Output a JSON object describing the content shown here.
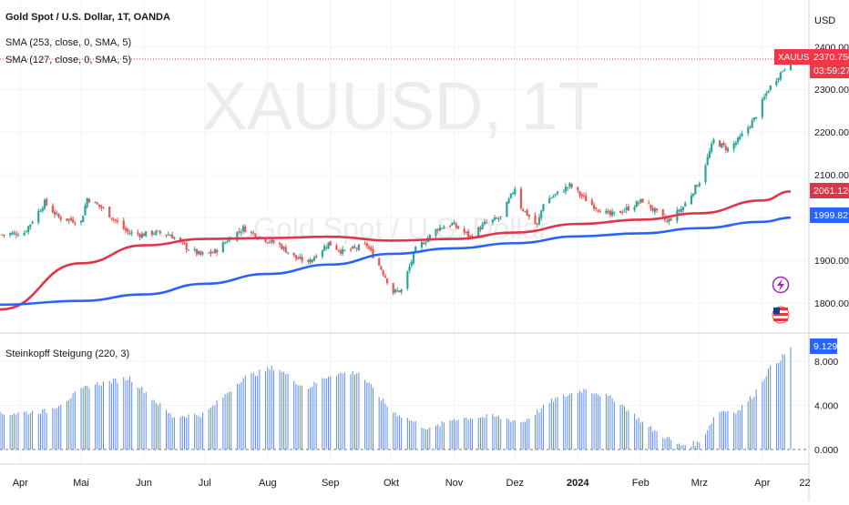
{
  "header": {
    "title": "Gold Spot / U.S. Dollar, 1T, OANDA",
    "currency": "USD"
  },
  "watermark": {
    "symbol": "XAUUSD, 1T",
    "name": "Gold Spot / U.S. Dollar"
  },
  "legend": {
    "sma_253": "SMA (253, close, 0, SMA, 5)",
    "sma_127": "SMA (127, close, 0, SMA, 5)",
    "indicator": "Steinkopff Steigung (220, 3)"
  },
  "price_axis": {
    "ticks": [
      "2400.000",
      "2300.000",
      "2200.000",
      "2100.000",
      "1900.000",
      "1800.000"
    ],
    "hidden_tick": "2000.000"
  },
  "indicator_axis": {
    "ticks": [
      "8.000",
      "4.000",
      "0.000"
    ]
  },
  "badges": {
    "symbol": "XAUUSD",
    "last_price": "2370.750",
    "countdown": "03:59:27",
    "sma_253_value": "2061.126",
    "sma_127_value": "1999.827",
    "indicator_value": "9.129"
  },
  "time_axis": {
    "labels": [
      "Apr",
      "Mai",
      "Jun",
      "Jul",
      "Aug",
      "Sep",
      "Okt",
      "Nov",
      "Dez",
      "2024",
      "Feb",
      "Mrz",
      "Apr",
      "22"
    ]
  },
  "colors": {
    "up": "#26a69a",
    "down": "#ef5350",
    "sma_253": "#e0344b",
    "sma_127": "#2962ff",
    "indicator_bars": "#5b8def",
    "last_price_badge": "#f23645",
    "indicator_badge": "#2962ff"
  },
  "icons": {
    "event_flash": "flash-icon",
    "event_country": "us-flag-icon"
  },
  "chart_data": [
    {
      "type": "candlestick",
      "title": "Gold Spot / U.S. Dollar, 1T, OANDA",
      "ylim": [
        1770,
        2430
      ],
      "x_range": [
        "2023-03-22",
        "2024-04-24"
      ],
      "x_labels": [
        "Apr",
        "Mai",
        "Jun",
        "Jul",
        "Aug",
        "Sep",
        "Okt",
        "Nov",
        "Dez",
        "2024",
        "Feb",
        "Mrz",
        "Apr",
        "22"
      ],
      "close_path": [
        [
          "2023-03-23",
          1960
        ],
        [
          "2023-04-03",
          1965
        ],
        [
          "2023-04-13",
          2035
        ],
        [
          "2023-04-20",
          2000
        ],
        [
          "2023-05-01",
          1990
        ],
        [
          "2023-05-04",
          2045
        ],
        [
          "2023-05-12",
          2020
        ],
        [
          "2023-05-24",
          1965
        ],
        [
          "2023-05-31",
          1960
        ],
        [
          "2023-06-06",
          1965
        ],
        [
          "2023-06-14",
          1960
        ],
        [
          "2023-06-22",
          1930
        ],
        [
          "2023-06-29",
          1912
        ],
        [
          "2023-07-06",
          1920
        ],
        [
          "2023-07-14",
          1955
        ],
        [
          "2023-07-20",
          1975
        ],
        [
          "2023-07-28",
          1955
        ],
        [
          "2023-08-07",
          1935
        ],
        [
          "2023-08-15",
          1905
        ],
        [
          "2023-08-21",
          1895
        ],
        [
          "2023-08-31",
          1940
        ],
        [
          "2023-09-07",
          1920
        ],
        [
          "2023-09-19",
          1935
        ],
        [
          "2023-09-26",
          1880
        ],
        [
          "2023-10-02",
          1825
        ],
        [
          "2023-10-06",
          1830
        ],
        [
          "2023-10-13",
          1925
        ],
        [
          "2023-10-24",
          1975
        ],
        [
          "2023-10-31",
          1985
        ],
        [
          "2023-11-09",
          1955
        ],
        [
          "2023-11-16",
          1985
        ],
        [
          "2023-11-24",
          2000
        ],
        [
          "2023-12-01",
          2070
        ],
        [
          "2023-12-04",
          2025
        ],
        [
          "2023-12-12",
          1980
        ],
        [
          "2023-12-15",
          2035
        ],
        [
          "2023-12-28",
          2075
        ],
        [
          "2024-01-08",
          2030
        ],
        [
          "2024-01-17",
          2005
        ],
        [
          "2024-01-25",
          2020
        ],
        [
          "2024-02-02",
          2040
        ],
        [
          "2024-02-14",
          1990
        ],
        [
          "2024-02-22",
          2025
        ],
        [
          "2024-03-01",
          2085
        ],
        [
          "2024-03-08",
          2180
        ],
        [
          "2024-03-15",
          2160
        ],
        [
          "2024-03-20",
          2180
        ],
        [
          "2024-03-28",
          2230
        ],
        [
          "2024-04-04",
          2300
        ],
        [
          "2024-04-11",
          2345
        ],
        [
          "2024-04-15",
          2370
        ]
      ],
      "series": [
        {
          "name": "SMA (253, close, 0, SMA, 5)",
          "x": [
            "2023-03-22",
            "2023-05-01",
            "2023-06-01",
            "2023-07-01",
            "2023-08-01",
            "2023-09-01",
            "2023-10-01",
            "2023-11-01",
            "2023-12-01",
            "2024-01-01",
            "2024-02-01",
            "2024-03-01",
            "2024-04-01",
            "2024-04-15"
          ],
          "values": [
            1785,
            1893,
            1935,
            1950,
            1952,
            1955,
            1946,
            1950,
            1965,
            1985,
            1995,
            2010,
            2040,
            2061.126
          ]
        },
        {
          "name": "SMA (127, close, 0, SMA, 5)",
          "x": [
            "2023-03-22",
            "2023-05-01",
            "2023-06-01",
            "2023-07-01",
            "2023-08-01",
            "2023-09-01",
            "2023-10-01",
            "2023-11-01",
            "2023-12-01",
            "2024-01-01",
            "2024-02-01",
            "2024-03-01",
            "2024-04-01",
            "2024-04-15"
          ],
          "values": [
            1796,
            1805,
            1820,
            1845,
            1868,
            1890,
            1915,
            1928,
            1940,
            1956,
            1963,
            1975,
            1990,
            1999.827
          ]
        }
      ],
      "markers": {
        "last_price": 2370.75
      }
    },
    {
      "type": "bar",
      "title": "Steinkopff Steigung (220, 3)",
      "ylim": [
        0,
        10
      ],
      "x_range": [
        "2023-03-22",
        "2024-04-24"
      ],
      "profile": [
        [
          "2023-03-22",
          3.2
        ],
        [
          "2023-04-15",
          3.5
        ],
        [
          "2023-05-05",
          5.8
        ],
        [
          "2023-05-25",
          6.5
        ],
        [
          "2023-06-15",
          3.0
        ],
        [
          "2023-07-01",
          3.2
        ],
        [
          "2023-07-20",
          6.5
        ],
        [
          "2023-08-05",
          7.5
        ],
        [
          "2023-08-20",
          5.5
        ],
        [
          "2023-09-01",
          6.8
        ],
        [
          "2023-09-15",
          7.0
        ],
        [
          "2023-10-01",
          3.5
        ],
        [
          "2023-10-20",
          1.8
        ],
        [
          "2023-11-01",
          2.8
        ],
        [
          "2023-11-20",
          3.0
        ],
        [
          "2023-12-05",
          2.5
        ],
        [
          "2023-12-20",
          4.5
        ],
        [
          "2024-01-05",
          5.5
        ],
        [
          "2024-01-20",
          4.5
        ],
        [
          "2024-02-05",
          2.0
        ],
        [
          "2024-02-20",
          0.4
        ],
        [
          "2024-03-01",
          0.6
        ],
        [
          "2024-03-10",
          3.5
        ],
        [
          "2024-03-20",
          3.5
        ],
        [
          "2024-03-28",
          5.0
        ],
        [
          "2024-04-04",
          7.2
        ],
        [
          "2024-04-15",
          9.129
        ]
      ],
      "last_value": 9.129
    }
  ]
}
